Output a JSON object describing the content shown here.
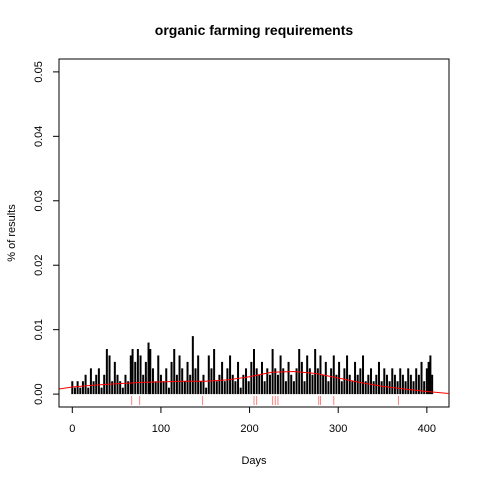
{
  "chart_data": {
    "type": "bar",
    "title": "organic farming requirements",
    "xlabel": "Days",
    "ylabel": "% of results",
    "xlim": [
      -15,
      425
    ],
    "ylim": [
      -0.002,
      0.052
    ],
    "xticks": [
      "0",
      "100",
      "200",
      "300",
      "400"
    ],
    "yticks": [
      "0.00",
      "0.01",
      "0.02",
      "0.03",
      "0.04",
      "0.05"
    ],
    "grid": false,
    "legend": "none",
    "colors": {
      "bars": "#000000",
      "trend": "#ff0000",
      "rug": "#ff8080"
    },
    "series": [
      {
        "values": [
          [
            0,
            0.002
          ],
          [
            3,
            0.001
          ],
          [
            6,
            0.002
          ],
          [
            9,
            0.001
          ],
          [
            12,
            0.002
          ],
          [
            15,
            0.003
          ],
          [
            18,
            0.001
          ],
          [
            21,
            0.004
          ],
          [
            24,
            0.002
          ],
          [
            27,
            0.003
          ],
          [
            30,
            0.004
          ],
          [
            33,
            0.001
          ],
          [
            36,
            0.003
          ],
          [
            39,
            0.007
          ],
          [
            42,
            0.006
          ],
          [
            45,
            0.002
          ],
          [
            48,
            0.005
          ],
          [
            51,
            0.003
          ],
          [
            54,
            0.002
          ],
          [
            57,
            0.001
          ],
          [
            60,
            0.003
          ],
          [
            63,
            0.002
          ],
          [
            66,
            0.006
          ],
          [
            68,
            0.007
          ],
          [
            71,
            0.005
          ],
          [
            74,
            0.007
          ],
          [
            77,
            0.006
          ],
          [
            80,
            0.003
          ],
          [
            83,
            0.005
          ],
          [
            86,
            0.008
          ],
          [
            88,
            0.007
          ],
          [
            91,
            0.004
          ],
          [
            94,
            0.002
          ],
          [
            97,
            0.006
          ],
          [
            100,
            0.003
          ],
          [
            103,
            0.002
          ],
          [
            106,
            0.004
          ],
          [
            109,
            0.001
          ],
          [
            112,
            0.005
          ],
          [
            115,
            0.007
          ],
          [
            118,
            0.003
          ],
          [
            121,
            0.006
          ],
          [
            124,
            0.004
          ],
          [
            127,
            0.002
          ],
          [
            130,
            0.005
          ],
          [
            133,
            0.003
          ],
          [
            136,
            0.009
          ],
          [
            139,
            0.004
          ],
          [
            142,
            0.006
          ],
          [
            145,
            0.002
          ],
          [
            148,
            0.003
          ],
          [
            151,
            0.001
          ],
          [
            154,
            0.006
          ],
          [
            157,
            0.004
          ],
          [
            160,
            0.007
          ],
          [
            163,
            0.002
          ],
          [
            166,
            0.003
          ],
          [
            169,
            0.005
          ],
          [
            172,
            0.002
          ],
          [
            175,
            0.004
          ],
          [
            178,
            0.006
          ],
          [
            181,
            0.003
          ],
          [
            184,
            0.002
          ],
          [
            187,
            0.005
          ],
          [
            190,
            0.001
          ],
          [
            193,
            0.003
          ],
          [
            196,
            0.004
          ],
          [
            199,
            0.002
          ],
          [
            202,
            0.005
          ],
          [
            205,
            0.007
          ],
          [
            208,
            0.004
          ],
          [
            211,
            0.003
          ],
          [
            214,
            0.005
          ],
          [
            217,
            0.002
          ],
          [
            220,
            0.004
          ],
          [
            223,
            0.003
          ],
          [
            226,
            0.007
          ],
          [
            229,
            0.004
          ],
          [
            232,
            0.003
          ],
          [
            235,
            0.006
          ],
          [
            238,
            0.004
          ],
          [
            241,
            0.002
          ],
          [
            244,
            0.005
          ],
          [
            247,
            0.003
          ],
          [
            250,
            0.002
          ],
          [
            253,
            0.004
          ],
          [
            256,
            0.007
          ],
          [
            259,
            0.005
          ],
          [
            262,
            0.002
          ],
          [
            265,
            0.006
          ],
          [
            268,
            0.004
          ],
          [
            271,
            0.003
          ],
          [
            274,
            0.007
          ],
          [
            277,
            0.004
          ],
          [
            280,
            0.006
          ],
          [
            283,
            0.003
          ],
          [
            286,
            0.005
          ],
          [
            289,
            0.002
          ],
          [
            292,
            0.004
          ],
          [
            295,
            0.006
          ],
          [
            298,
            0.003
          ],
          [
            301,
            0.005
          ],
          [
            304,
            0.002
          ],
          [
            307,
            0.004
          ],
          [
            310,
            0.006
          ],
          [
            313,
            0.003
          ],
          [
            316,
            0.002
          ],
          [
            319,
            0.005
          ],
          [
            322,
            0.003
          ],
          [
            325,
            0.004
          ],
          [
            328,
            0.006
          ],
          [
            331,
            0.002
          ],
          [
            334,
            0.003
          ],
          [
            337,
            0.004
          ],
          [
            340,
            0.002
          ],
          [
            343,
            0.003
          ],
          [
            346,
            0.005
          ],
          [
            349,
            0.002
          ],
          [
            352,
            0.004
          ],
          [
            355,
            0.003
          ],
          [
            358,
            0.002
          ],
          [
            361,
            0.004
          ],
          [
            364,
            0.003
          ],
          [
            367,
            0.002
          ],
          [
            370,
            0.004
          ],
          [
            373,
            0.003
          ],
          [
            376,
            0.002
          ],
          [
            379,
            0.004
          ],
          [
            382,
            0.003
          ],
          [
            385,
            0.002
          ],
          [
            388,
            0.004
          ],
          [
            391,
            0.003
          ],
          [
            394,
            0.005
          ],
          [
            397,
            0.002
          ],
          [
            400,
            0.004
          ],
          [
            402,
            0.005
          ],
          [
            404,
            0.006
          ],
          [
            406,
            0.003
          ]
        ]
      }
    ],
    "trend": [
      [
        -15,
        0.0008
      ],
      [
        0,
        0.0011
      ],
      [
        25,
        0.0014
      ],
      [
        50,
        0.0016
      ],
      [
        75,
        0.0018
      ],
      [
        100,
        0.0019
      ],
      [
        125,
        0.002
      ],
      [
        150,
        0.002
      ],
      [
        175,
        0.0022
      ],
      [
        200,
        0.0027
      ],
      [
        225,
        0.0034
      ],
      [
        250,
        0.0035
      ],
      [
        275,
        0.0032
      ],
      [
        300,
        0.0025
      ],
      [
        325,
        0.0018
      ],
      [
        350,
        0.0012
      ],
      [
        375,
        0.0008
      ],
      [
        400,
        0.0004
      ],
      [
        425,
        0.0001
      ]
    ],
    "rug": [
      67,
      76,
      147,
      205,
      208,
      226,
      229,
      232,
      278,
      280,
      295,
      368
    ]
  }
}
